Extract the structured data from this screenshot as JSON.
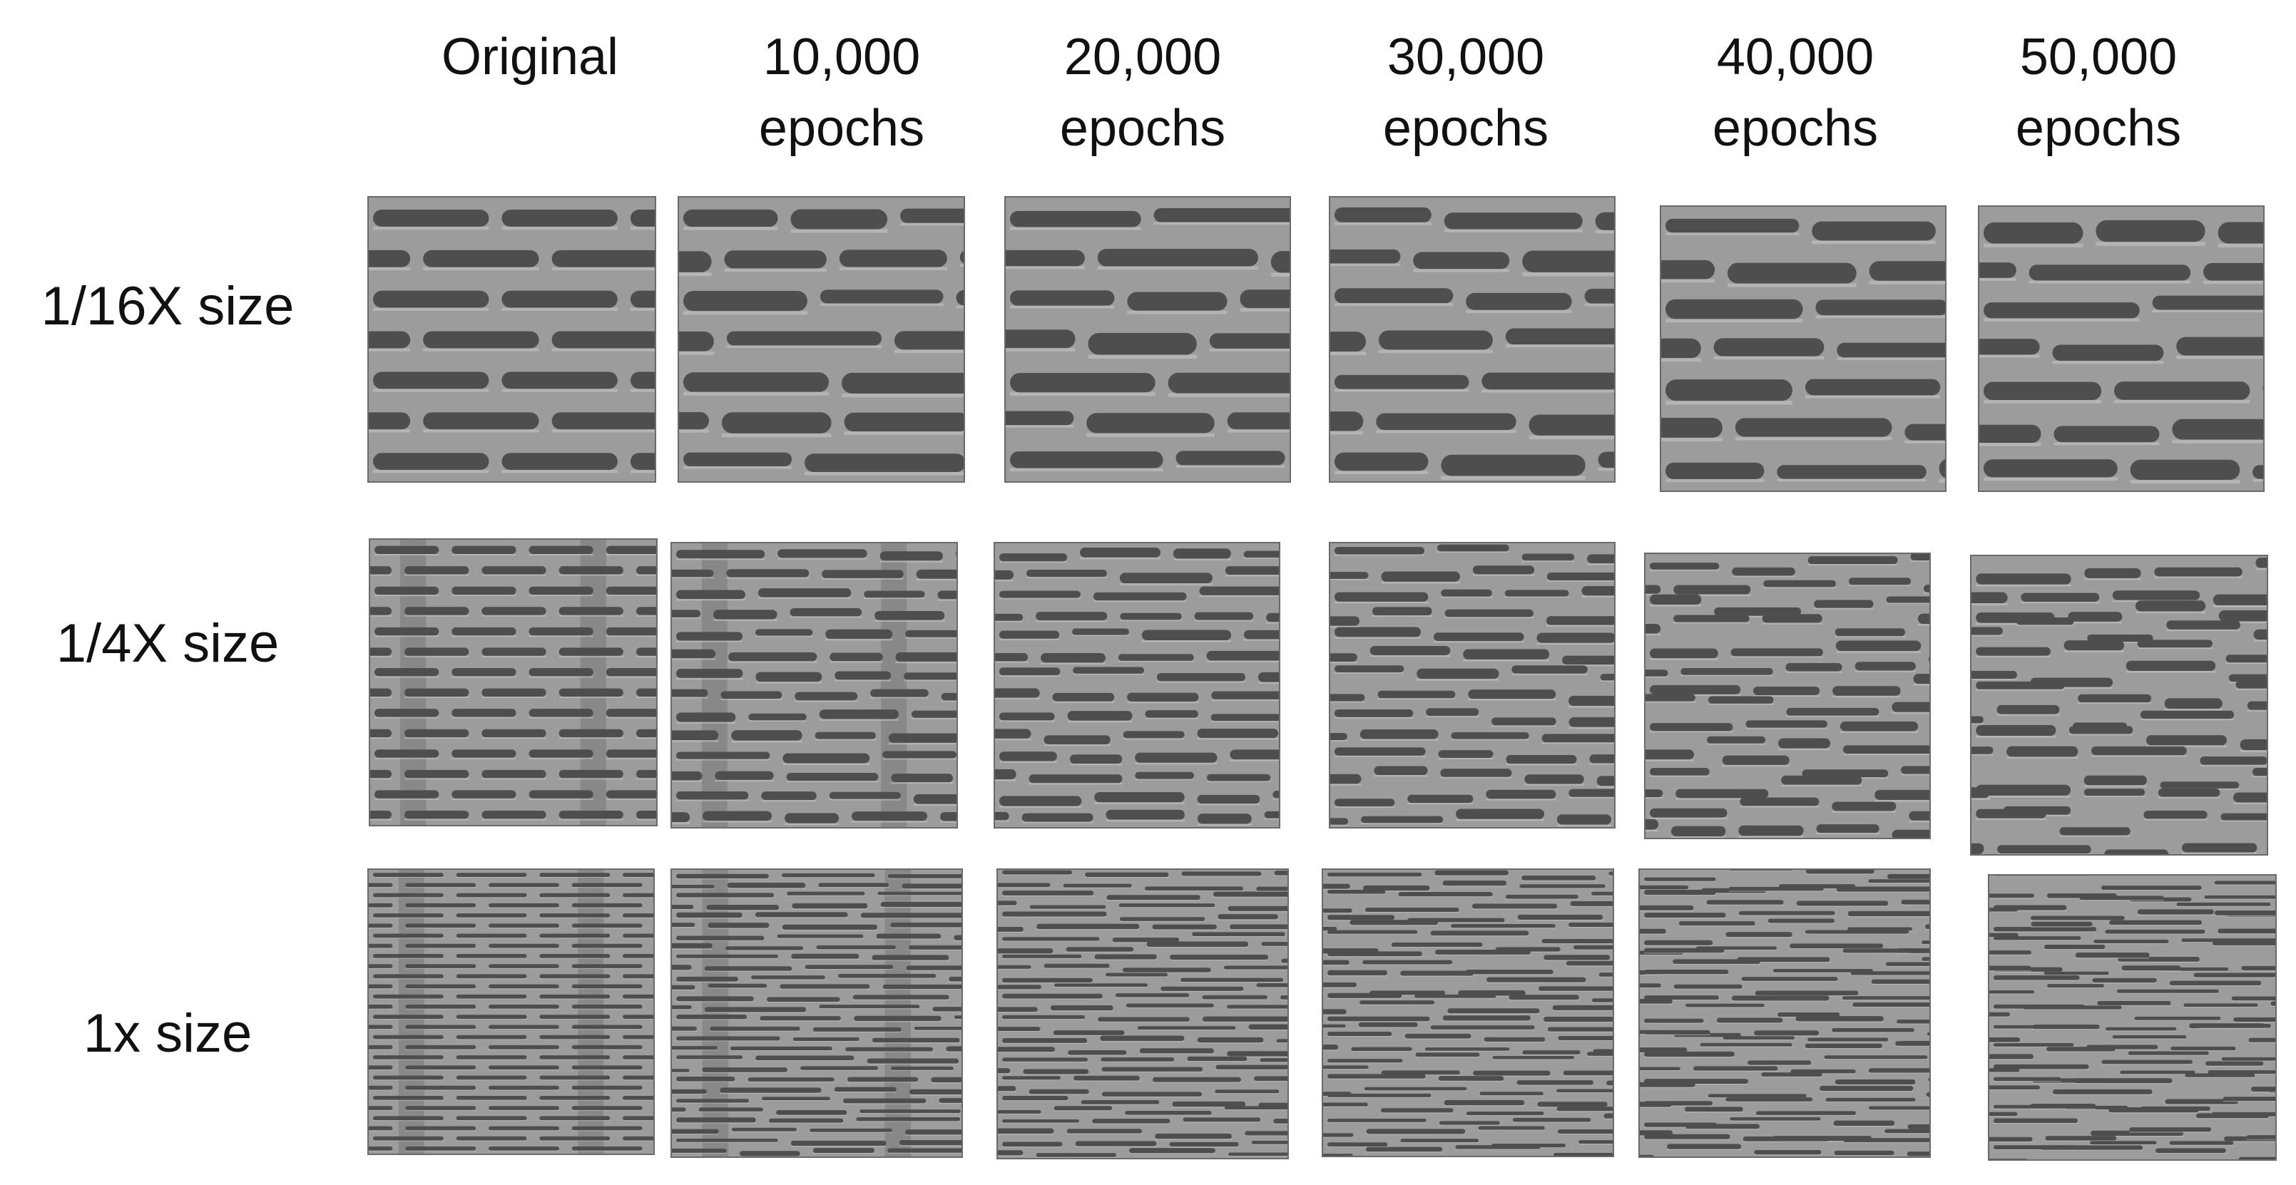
{
  "columns": [
    {
      "line1": "Original",
      "line2": ""
    },
    {
      "line1": "10,000",
      "line2": "epochs"
    },
    {
      "line1": "20,000",
      "line2": "epochs"
    },
    {
      "line1": "30,000",
      "line2": "epochs"
    },
    {
      "line1": "40,000",
      "line2": "epochs"
    },
    {
      "line1": "50,000",
      "line2": "epochs"
    }
  ],
  "rows": [
    {
      "label": "1/16X size"
    },
    {
      "label": "1/4X size"
    },
    {
      "label": "1x size"
    }
  ],
  "colors": {
    "background": "#9c9c9c",
    "feature": "#4e4e4e",
    "highlight": "#c4c4c4"
  }
}
